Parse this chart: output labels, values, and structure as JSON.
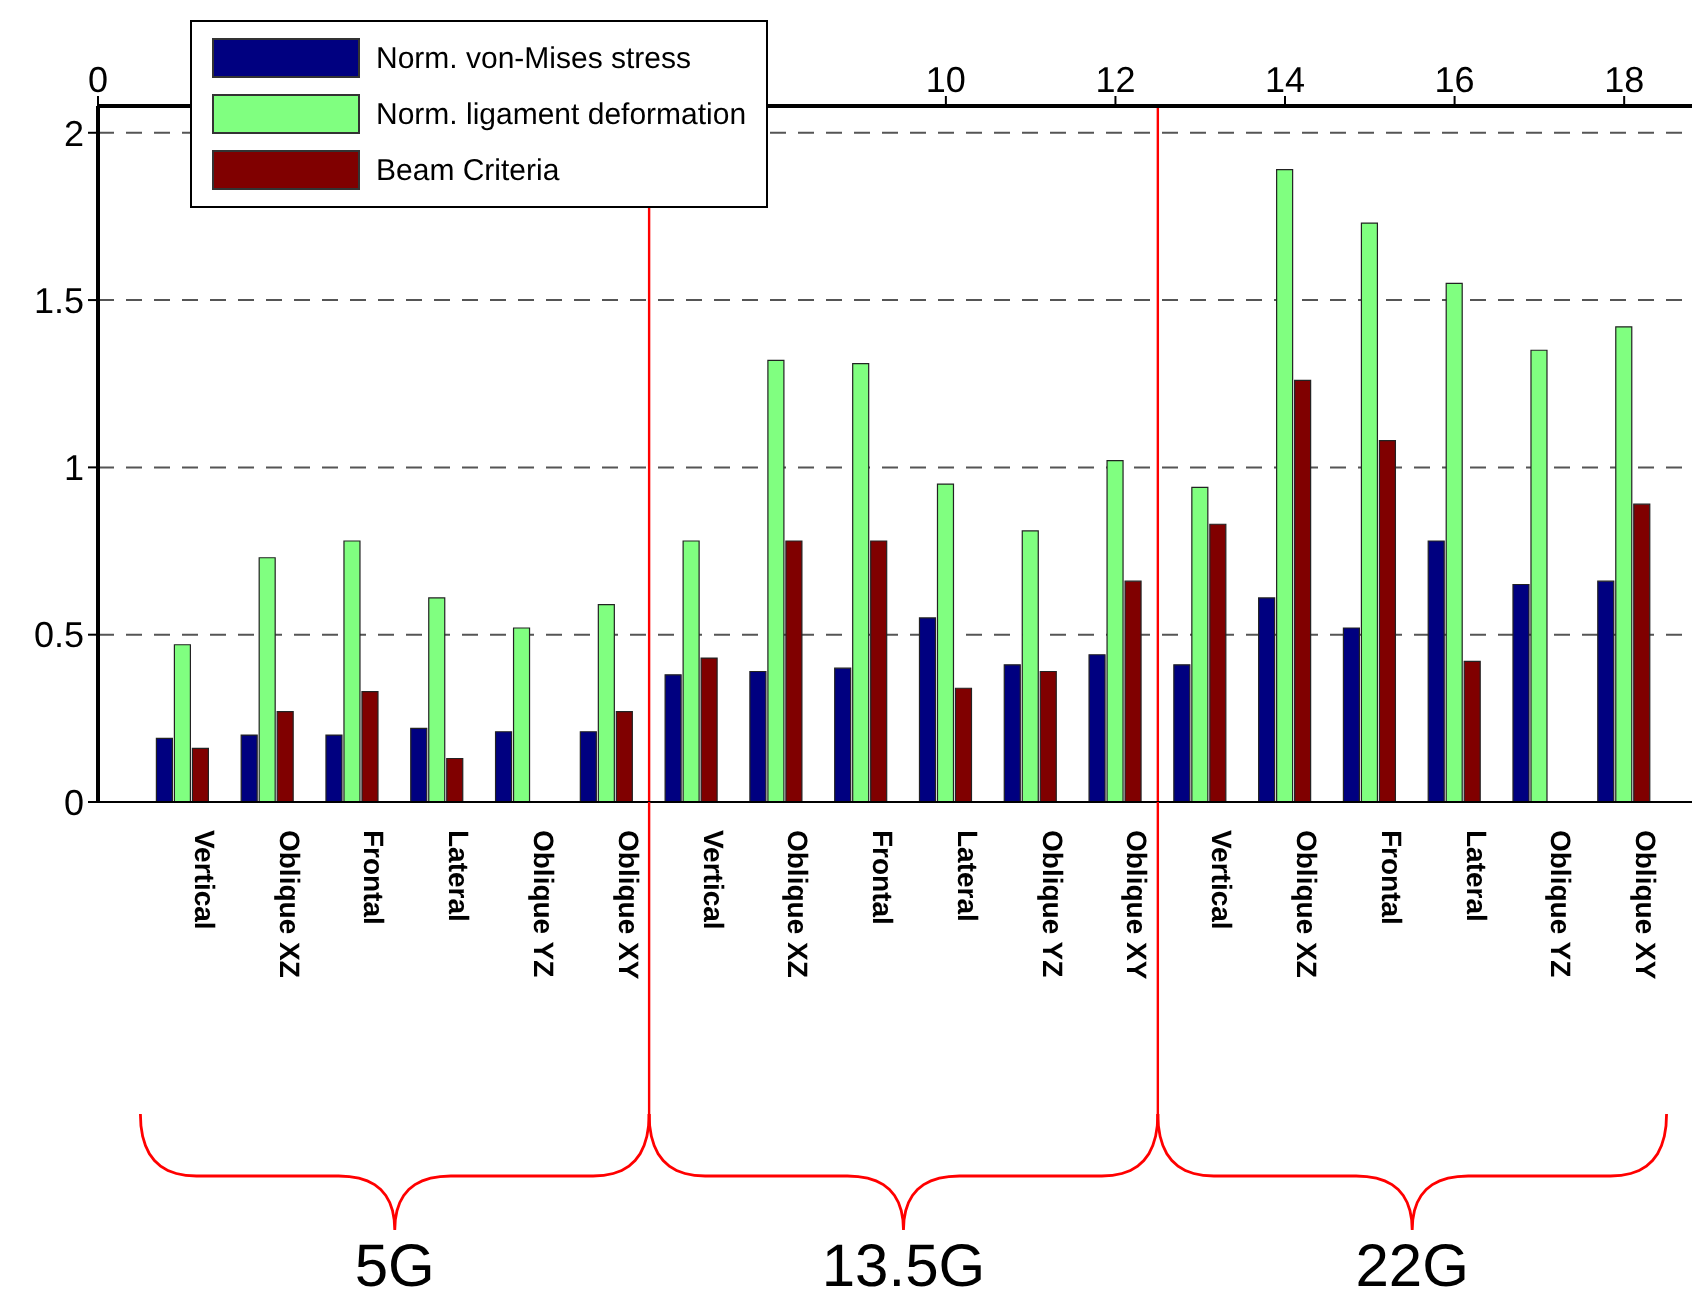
{
  "chart_data": {
    "type": "bar",
    "categories": [
      "Vertical",
      "Oblique XZ",
      "Frontal",
      "Lateral",
      "Oblique YZ",
      "Oblique XY",
      "Vertical",
      "Oblique XZ",
      "Frontal",
      "Lateral",
      "Oblique YZ",
      "Oblique XY",
      "Vertical",
      "Oblique XZ",
      "Frontal",
      "Lateral",
      "Oblique YZ",
      "Oblique XY"
    ],
    "series": [
      {
        "name": "Norm. von-Mises stress",
        "color": "#000080",
        "values": [
          0.19,
          0.2,
          0.2,
          0.22,
          0.21,
          0.21,
          0.38,
          0.39,
          0.4,
          0.55,
          0.41,
          0.44,
          0.41,
          0.61,
          0.52,
          0.78,
          0.65,
          0.66
        ]
      },
      {
        "name": "Norm. ligament deformation",
        "color": "#80ff80",
        "values": [
          0.47,
          0.73,
          0.78,
          0.61,
          0.52,
          0.59,
          0.78,
          1.32,
          1.31,
          0.95,
          0.81,
          1.02,
          0.94,
          1.89,
          1.73,
          1.55,
          1.35,
          1.42
        ]
      },
      {
        "name": "Beam Criteria",
        "color": "#800000",
        "values": [
          0.16,
          0.27,
          0.33,
          0.13,
          null,
          0.27,
          0.43,
          0.78,
          0.78,
          0.34,
          0.39,
          0.66,
          0.83,
          1.26,
          1.08,
          0.42,
          null,
          0.89
        ]
      }
    ],
    "ylim": [
      0,
      2.08
    ],
    "yticks": [
      0,
      0.5,
      1,
      1.5,
      2
    ],
    "x2lim": [
      0,
      18.8
    ],
    "x2ticks": [
      0,
      10,
      12,
      14,
      16,
      18
    ],
    "ref_lines": [
      {
        "axis": "x2",
        "value": 6.5,
        "color": "#ff0000"
      },
      {
        "axis": "x2",
        "value": 12.5,
        "color": "#ff0000"
      }
    ],
    "annotations": [
      "5G",
      "13.5G",
      "22G"
    ],
    "grid": "y",
    "legend": "top left"
  }
}
